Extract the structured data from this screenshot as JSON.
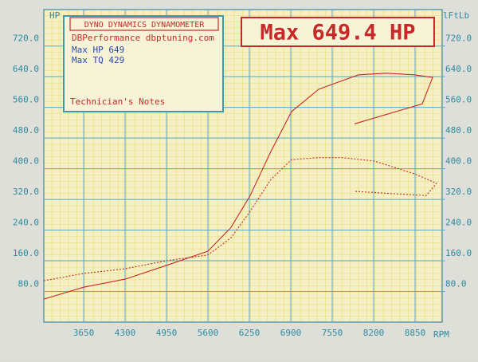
{
  "chart_data": {
    "type": "line",
    "box_title": "DYNO DYNAMICS DYNAMOMETER",
    "box_lines": [
      "DBPerformance dbptuning.com",
      "Max HP 649",
      "Max TQ 429"
    ],
    "notes": "Technician's Notes",
    "headline": "Max 649.4 HP",
    "y_label": "HP",
    "y2_label": "lFtLb",
    "x_label": "RPM",
    "xlim": [
      3025,
      9275
    ],
    "xticks": [
      3650,
      4300,
      4950,
      5600,
      6250,
      6900,
      7550,
      8200,
      8850
    ],
    "ylim": [
      0,
      815
    ],
    "yticks": [
      {
        "value": 80,
        "label": "80.0"
      },
      {
        "value": 160,
        "label": "160.0"
      },
      {
        "value": 240,
        "label": "240.0"
      },
      {
        "value": 320,
        "label": "320.0"
      },
      {
        "value": 400,
        "label": "400.0"
      },
      {
        "value": 480,
        "label": "480.0"
      },
      {
        "value": 560,
        "label": "560.0"
      },
      {
        "value": 640,
        "label": "640.0"
      },
      {
        "value": 720,
        "label": "720.0"
      }
    ],
    "y2lim": [
      0,
      815
    ],
    "y2ticks": [
      {
        "value": 80,
        "label": "80.0"
      },
      {
        "value": 160,
        "label": "160.0"
      },
      {
        "value": 240,
        "label": "240.0"
      },
      {
        "value": 320,
        "label": "320.0"
      },
      {
        "value": 400,
        "label": "400.0"
      },
      {
        "value": 480,
        "label": "480.0"
      },
      {
        "value": 560,
        "label": "560.0"
      },
      {
        "value": 640,
        "label": "640.0"
      },
      {
        "value": 720,
        "label": "720.0"
      }
    ],
    "grid": true,
    "series": [
      {
        "color": "#c82828",
        "dash": false,
        "x": [
          3025,
          3650,
          4300,
          4950,
          5600,
          5962,
          6262,
          6587,
          6912,
          7337,
          7712,
          7962,
          8400,
          8837,
          9125,
          8962,
          7900
        ],
        "values": [
          60,
          91,
          112,
          148,
          185,
          247,
          330,
          445,
          549,
          607,
          630,
          645,
          649,
          645,
          638,
          569,
          517
        ]
      },
      {
        "color": "#c82828",
        "dash": true,
        "axis": "y2",
        "x": [
          3025,
          3650,
          4300,
          4950,
          5600,
          5962,
          6262,
          6587,
          6912,
          7337,
          7712,
          8212,
          8837,
          9187,
          9025,
          7900
        ],
        "values": [
          108,
          127,
          139,
          160,
          175,
          220,
          289,
          372,
          424,
          429,
          429,
          420,
          387,
          362,
          330,
          341
        ]
      }
    ]
  }
}
